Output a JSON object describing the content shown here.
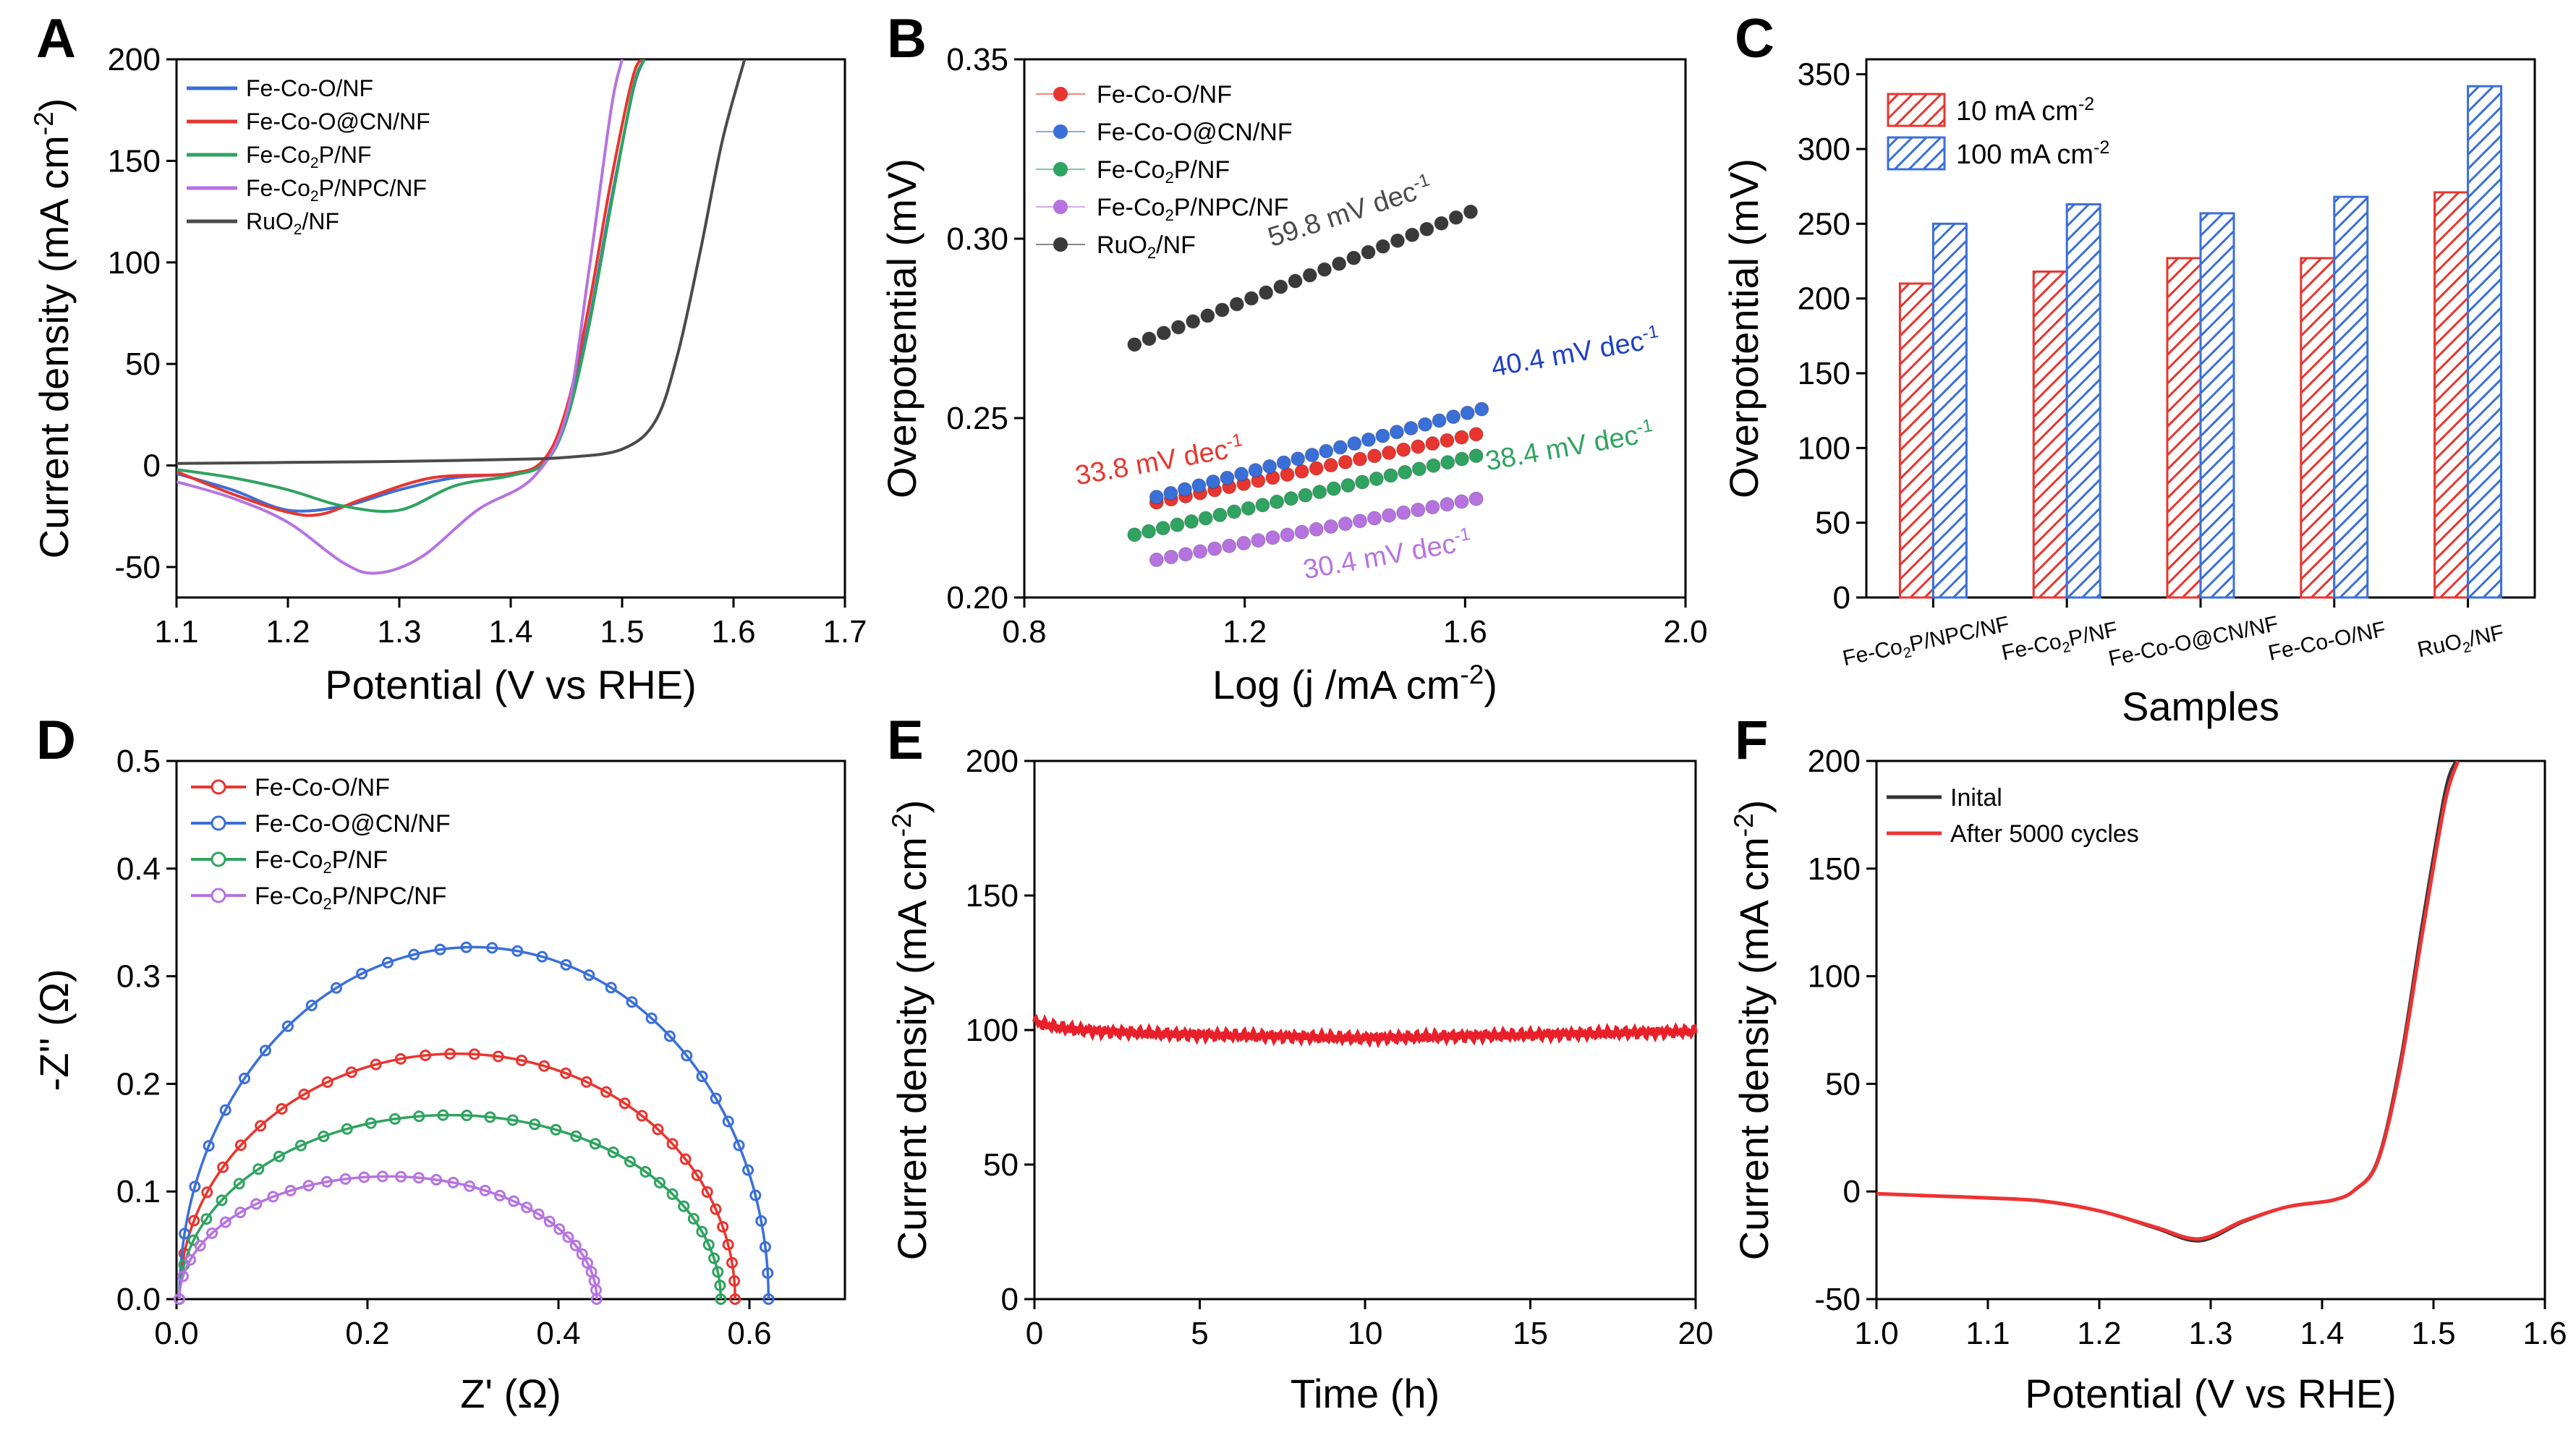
{
  "figure": {
    "panel_labels": [
      "A",
      "B",
      "C",
      "D",
      "E",
      "F"
    ]
  },
  "chart_data": [
    {
      "panel": "A",
      "type": "line",
      "title": "",
      "xlabel": "Potential (V vs RHE)",
      "ylabel": "Current density (mA cm-2)",
      "xlim": [
        1.1,
        1.7
      ],
      "ylim": [
        -65,
        200
      ],
      "xticks": [
        1.1,
        1.2,
        1.3,
        1.4,
        1.5,
        1.6,
        1.7
      ],
      "yticks": [
        -50,
        0,
        50,
        100,
        150,
        200
      ],
      "legend_position": "top-left",
      "series": [
        {
          "name": "Fe-Co-O/NF",
          "color": "#3a6fd8",
          "x": [
            1.1,
            1.15,
            1.2,
            1.25,
            1.3,
            1.35,
            1.4,
            1.43,
            1.45,
            1.47,
            1.49,
            1.51,
            1.52
          ],
          "y": [
            -4,
            -12,
            -22,
            -20,
            -12,
            -6,
            -4,
            2,
            25,
            70,
            130,
            185,
            200
          ]
        },
        {
          "name": "Fe-Co-O@CN/NF",
          "color": "#e8352f",
          "x": [
            1.1,
            1.15,
            1.2,
            1.23,
            1.27,
            1.33,
            1.4,
            1.43,
            1.45,
            1.47,
            1.49,
            1.51,
            1.52
          ],
          "y": [
            -3,
            -14,
            -23,
            -24,
            -16,
            -6,
            -4,
            3,
            28,
            78,
            140,
            192,
            200
          ]
        },
        {
          "name": "Fe-Co2P/NF",
          "color": "#2fa360",
          "x": [
            1.1,
            1.15,
            1.2,
            1.25,
            1.3,
            1.35,
            1.4,
            1.43,
            1.45,
            1.47,
            1.49,
            1.51,
            1.52
          ],
          "y": [
            -2,
            -6,
            -12,
            -20,
            -22,
            -10,
            -5,
            1,
            22,
            68,
            128,
            186,
            200
          ]
        },
        {
          "name": "Fe-Co2P/NPC/NF",
          "color": "#b673e0",
          "x": [
            1.1,
            1.15,
            1.2,
            1.25,
            1.28,
            1.32,
            1.37,
            1.42,
            1.45,
            1.47,
            1.49,
            1.5
          ],
          "y": [
            -8,
            -16,
            -28,
            -48,
            -53,
            -45,
            -22,
            -6,
            25,
            95,
            175,
            200
          ]
        },
        {
          "name": "RuO2/NF",
          "color": "#4a4a4a",
          "x": [
            1.1,
            1.2,
            1.3,
            1.4,
            1.45,
            1.5,
            1.53,
            1.55,
            1.57,
            1.59,
            1.61
          ],
          "y": [
            1,
            1.5,
            2,
            3,
            4,
            8,
            22,
            55,
            105,
            160,
            200
          ]
        }
      ]
    },
    {
      "panel": "B",
      "type": "scatter",
      "title": "",
      "xlabel": "Log (j /mA cm-2)",
      "ylabel": "Overpotential (mV)",
      "xlim": [
        0.8,
        2.0
      ],
      "ylim": [
        0.2,
        0.35
      ],
      "xticks": [
        0.8,
        1.2,
        1.6,
        2.0
      ],
      "yticks": [
        0.2,
        0.25,
        0.3,
        0.35
      ],
      "legend_position": "top-left",
      "series": [
        {
          "name": "Fe-Co-O/NF",
          "color": "#e8352f",
          "x_start": 1.04,
          "x_end": 1.62,
          "y_start": 0.2265,
          "y_end": 0.2455,
          "annotation": ""
        },
        {
          "name": "Fe-Co-O@CN/NF",
          "color": "#3a6fd8",
          "x_start": 1.04,
          "x_end": 1.63,
          "y_start": 0.228,
          "y_end": 0.2525,
          "annotation": "40.4 mV dec-1"
        },
        {
          "name": "Fe-Co2P/NF",
          "color": "#2fa360",
          "x_start": 1.0,
          "x_end": 1.62,
          "y_start": 0.2175,
          "y_end": 0.2395,
          "annotation": "38.4 mV dec-1"
        },
        {
          "name": "Fe-Co2P/NPC/NF",
          "color": "#b673e0",
          "x_start": 1.04,
          "x_end": 1.62,
          "y_start": 0.2105,
          "y_end": 0.2275,
          "annotation": "30.4 mV dec-1"
        },
        {
          "name": "RuO2/NF",
          "color": "#3a3a3a",
          "x_start": 1.0,
          "x_end": 1.61,
          "y_start": 0.2705,
          "y_end": 0.3075,
          "annotation": "59.8 mV dec-1"
        }
      ],
      "extra_annotations": [
        "33.8 mV dec-1"
      ]
    },
    {
      "panel": "C",
      "type": "bar",
      "title": "",
      "xlabel": "Samples",
      "ylabel": "Overpotential (mV)",
      "ylim": [
        0,
        360
      ],
      "yticks": [
        0,
        50,
        100,
        150,
        200,
        250,
        300,
        350
      ],
      "categories": [
        "Fe-Co2P/NPC/NF",
        "Fe-Co2P/NF",
        "Fe-Co-O@CN/NF",
        "Fe-Co-O/NF",
        "RuO2/NF"
      ],
      "legend_position": "top-left",
      "series": [
        {
          "name": "10 mA cm-2",
          "color": "#e8352f",
          "values": [
            210,
            218,
            227,
            227,
            271
          ]
        },
        {
          "name": "100 mA cm-2",
          "color": "#3a6fd8",
          "values": [
            250,
            263,
            257,
            268,
            342
          ]
        }
      ]
    },
    {
      "panel": "D",
      "type": "scatter",
      "title": "",
      "xlabel": "Z' (Ω)",
      "ylabel": "-Z'' (Ω)",
      "xlim": [
        0,
        0.7
      ],
      "ylim": [
        0,
        0.5
      ],
      "xticks": [
        0.0,
        0.2,
        0.4,
        0.6
      ],
      "yticks": [
        0.0,
        0.1,
        0.2,
        0.3,
        0.4,
        0.5
      ],
      "legend_position": "top-left",
      "series": [
        {
          "name": "Fe-Co-O/NF",
          "color": "#e8352f",
          "z_start": 0.003,
          "z_end": 0.585,
          "z_peak": 0.228
        },
        {
          "name": "Fe-Co-O@CN/NF",
          "color": "#3a6fd8",
          "z_start": 0.003,
          "z_end": 0.62,
          "z_peak": 0.327
        },
        {
          "name": "Fe-Co2P/NF",
          "color": "#2fa360",
          "z_start": 0.003,
          "z_end": 0.57,
          "z_peak": 0.171
        },
        {
          "name": "Fe-Co2P/NPC/NF",
          "color": "#b673e0",
          "z_start": 0.003,
          "z_end": 0.44,
          "z_peak": 0.114
        }
      ]
    },
    {
      "panel": "E",
      "type": "line",
      "title": "",
      "xlabel": "Time (h)",
      "ylabel": "Current density (mA cm-2)",
      "xlim": [
        0,
        20
      ],
      "ylim": [
        0,
        200
      ],
      "xticks": [
        0,
        5,
        10,
        15,
        20
      ],
      "yticks": [
        0,
        50,
        100,
        150,
        200
      ],
      "series": [
        {
          "name": "",
          "color": "#e8202a",
          "x": [
            0,
            0.5,
            1,
            2,
            4,
            6,
            8,
            10,
            12,
            14,
            16,
            18,
            20
          ],
          "y": [
            103,
            101.5,
            100.5,
            99.5,
            98.5,
            98,
            97.5,
            97,
            97.5,
            98,
            98.5,
            99,
            99.5
          ]
        }
      ]
    },
    {
      "panel": "F",
      "type": "line",
      "title": "",
      "xlabel": "Potential (V vs RHE)",
      "ylabel": "Current density (mA cm-2)",
      "xlim": [
        1.0,
        1.6
      ],
      "ylim": [
        -50,
        200
      ],
      "xticks": [
        1.0,
        1.1,
        1.2,
        1.3,
        1.4,
        1.5,
        1.6
      ],
      "yticks": [
        -50,
        0,
        50,
        100,
        150,
        200
      ],
      "legend_position": "top-left",
      "series": [
        {
          "name": "Inital",
          "color": "#333333",
          "x": [
            1.0,
            1.05,
            1.1,
            1.15,
            1.2,
            1.25,
            1.29,
            1.33,
            1.37,
            1.41,
            1.43,
            1.45,
            1.47,
            1.49,
            1.51,
            1.52
          ],
          "y": [
            -1,
            -2,
            -3,
            -4.5,
            -9,
            -17,
            -23,
            -14,
            -7,
            -4,
            1,
            15,
            60,
            125,
            185,
            200
          ]
        },
        {
          "name": "After 5000 cycles",
          "color": "#ee3333",
          "x": [
            1.0,
            1.05,
            1.1,
            1.15,
            1.2,
            1.25,
            1.29,
            1.33,
            1.37,
            1.41,
            1.43,
            1.45,
            1.47,
            1.49,
            1.51,
            1.522
          ],
          "y": [
            -1,
            -2,
            -3,
            -4.5,
            -9,
            -16.5,
            -22,
            -13.5,
            -7,
            -4,
            1,
            14,
            57,
            120,
            180,
            200
          ]
        }
      ]
    }
  ]
}
